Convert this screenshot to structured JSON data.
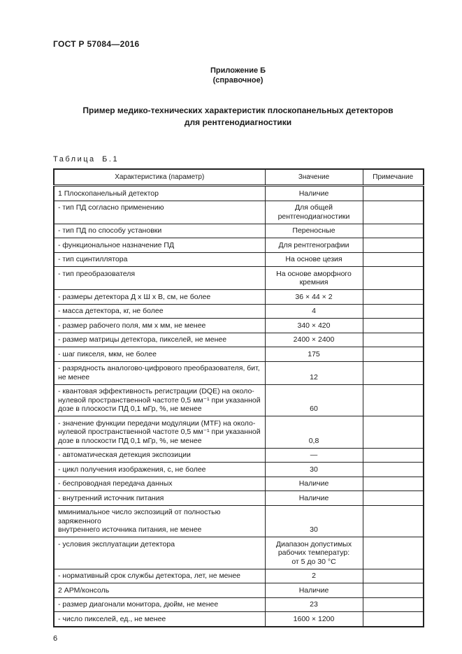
{
  "page": {
    "doc_number": "ГОСТ Р 57084—2016",
    "appendix_title": "Приложение Б",
    "appendix_subtitle": "(справочное)",
    "main_title_line1": "Пример медико-технических характеристик плоскопанельных детекторов",
    "main_title_line2": "для рентгенодиагностики",
    "table_label": "Таблица Б.1",
    "page_number": "6"
  },
  "table": {
    "headers": [
      "Характеристика (параметр)",
      "Значение",
      "Примечание"
    ],
    "rows": [
      {
        "param": "1 Плоскопанельный детектор",
        "value": "Наличие",
        "note": ""
      },
      {
        "param": "- тип ПД согласно применению",
        "value": "Для общей\nрентгенодиагностики",
        "note": ""
      },
      {
        "param": "- тип ПД по способу установки",
        "value": "Переносные",
        "note": ""
      },
      {
        "param": "- функциональное назначение ПД",
        "value": "Для рентгенографии",
        "note": ""
      },
      {
        "param": "- тип сцинтиллятора",
        "value": "На основе цезия",
        "note": ""
      },
      {
        "param": "- тип преобразователя",
        "value": "На основе аморфного\nкремния",
        "note": ""
      },
      {
        "param": "- размеры детектора Д х Ш х В, см, не более",
        "value": "36 × 44 × 2",
        "note": ""
      },
      {
        "param": "- масса детектора, кг, не более",
        "value": "4",
        "note": ""
      },
      {
        "param": "- размер рабочего поля, мм х мм, не менее",
        "value": "340 × 420",
        "note": ""
      },
      {
        "param": "- размер матрицы детектора, пикселей, не менее",
        "value": "2400 × 2400",
        "note": ""
      },
      {
        "param": "- шаг пикселя, мкм, не более",
        "value": "175",
        "note": ""
      },
      {
        "param": "- разрядность аналогово-цифрового преобразователя, бит,\nне менее",
        "value": "12",
        "note": ""
      },
      {
        "param": "- квантовая эффективность регистрации (DQE) на около-\nнулевой пространственной частоте 0,5 мм⁻¹ при указанной\nдозе в плоскости ПД 0,1 мГр, %, не менее",
        "value": "60",
        "note": ""
      },
      {
        "param": "- значение функции передачи модуляции (MTF) на около-\nнулевой пространственной частоте 0,5 мм⁻¹ при указанной\nдозе в плоскости ПД 0,1 мГр, %, не менее",
        "value": "0,8",
        "note": ""
      },
      {
        "param": "- автоматическая детекция экспозиции",
        "value": "—",
        "note": ""
      },
      {
        "param": "- цикл получения изображения, с, не более",
        "value": "30",
        "note": ""
      },
      {
        "param": "- беспроводная передача данных",
        "value": "Наличие",
        "note": ""
      },
      {
        "param": "- внутренний источник питания",
        "value": "Наличие",
        "note": ""
      },
      {
        "param": "мминимальное число экспозиций от полностью заряженного\nвнутреннего источника питания, не менее",
        "value": "30",
        "note": ""
      },
      {
        "param": "- условия эксплуатации детектора",
        "value": "Диапазон допустимых\nрабочих температур:\nот 5 до 30 °С",
        "note": ""
      },
      {
        "param": "- нормативный срок службы детектора, лет, не менее",
        "value": "2",
        "note": ""
      },
      {
        "param": "2 АРМ/консоль",
        "value": "Наличие",
        "note": ""
      },
      {
        "param": "- размер диагонали монитора, дюйм, не менее",
        "value": "23",
        "note": ""
      },
      {
        "param": "- число пикселей, ед., не менее",
        "value": "1600 × 1200",
        "note": ""
      }
    ]
  }
}
